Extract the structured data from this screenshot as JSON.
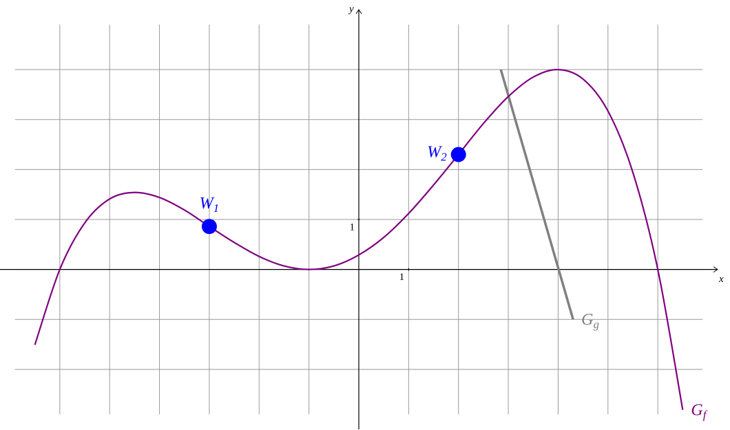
{
  "chart_data": {
    "type": "line",
    "xlabel": "x",
    "ylabel": "y",
    "xlim": [
      -7.2,
      7.2
    ],
    "ylim": [
      -3.2,
      5.2
    ],
    "xticks": [
      1
    ],
    "yticks": [
      1
    ],
    "grid": true,
    "xgrid": [
      -6,
      -5,
      -4,
      -3,
      -2,
      -1,
      0,
      1,
      2,
      3,
      4,
      5,
      6
    ],
    "ygrid": [
      -2,
      -1,
      0,
      1,
      2,
      3,
      4
    ],
    "series": [
      {
        "name": {
          "base": "G",
          "sub": "f"
        },
        "color": "#800080",
        "x": [
          -6.5,
          -6,
          -5.5,
          -5,
          -4.5,
          -4,
          -3.5,
          -3,
          -2.5,
          -2,
          -1.5,
          -1,
          -0.5,
          0,
          0.5,
          1,
          1.5,
          2,
          2.5,
          3,
          3.5,
          4,
          4.5,
          5,
          5.5,
          6,
          6.5
        ],
        "values": [
          -1.51,
          0,
          0.93,
          1.41,
          1.54,
          1.44,
          1.19,
          0.86,
          0.54,
          0.26,
          0.07,
          0,
          0.07,
          0.29,
          0.64,
          1.12,
          1.69,
          2.3,
          2.92,
          3.46,
          3.85,
          4,
          3.81,
          3.17,
          1.94,
          0,
          -2.81
        ]
      },
      {
        "name": {
          "base": "G",
          "sub": "g"
        },
        "color": "#808080",
        "x": [
          2.85,
          4.3
        ],
        "values": [
          4,
          -1
        ]
      }
    ],
    "points": [
      {
        "name": {
          "base": "W",
          "sub": "1"
        },
        "color": "#0000ff",
        "x": -3,
        "y": 0.86
      },
      {
        "name": {
          "base": "W",
          "sub": "2"
        },
        "color": "#0000ff",
        "x": 2,
        "y": 2.3
      }
    ]
  }
}
